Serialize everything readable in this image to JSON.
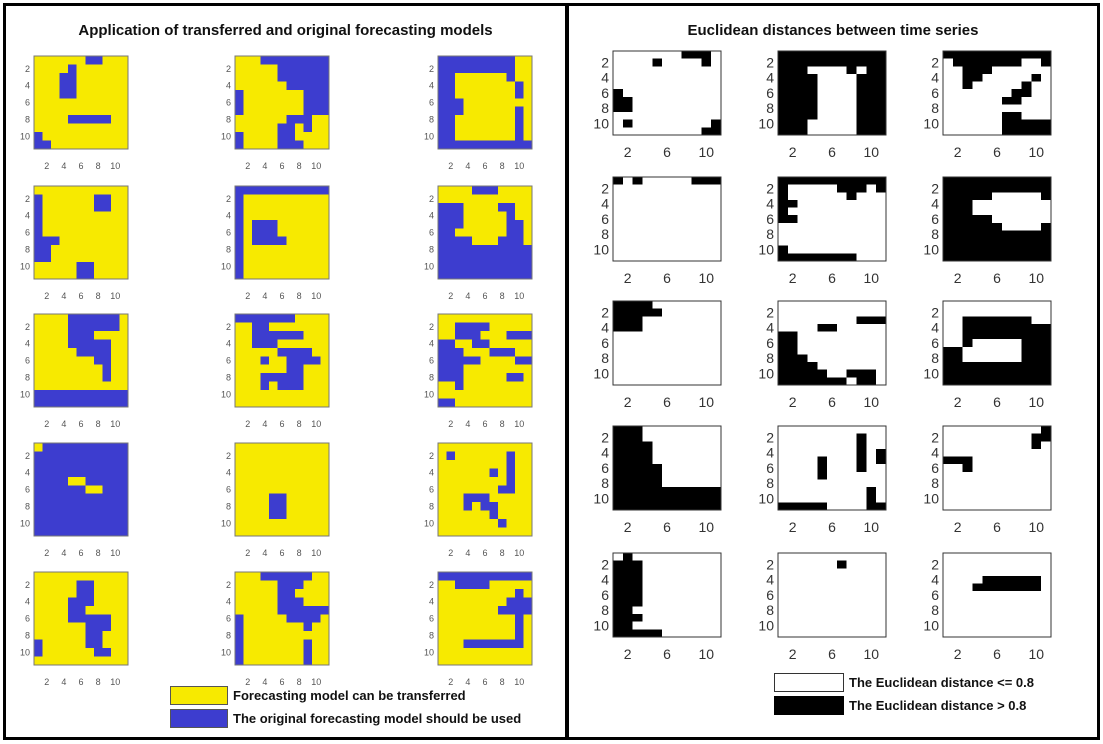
{
  "left_panel": {
    "title": "Application of transferred and original forecasting models",
    "legend": [
      {
        "label": "Forecasting model can be transferred",
        "value": 1,
        "color": "#f7ea00"
      },
      {
        "label": "The original forecasting model should be used",
        "value": 0,
        "color": "#3d3dcf"
      }
    ]
  },
  "right_panel": {
    "title": "Euclidean distances between time series",
    "legend": [
      {
        "label": "The Euclidean distance <= 0.8",
        "value": 1,
        "color": "#ffffff"
      },
      {
        "label": "The Euclidean distance > 0.8",
        "value": 0,
        "color": "#000000"
      }
    ]
  },
  "chart_data": [
    {
      "type": "heatmap",
      "panel": "left",
      "title": "Application of transferred and original forecasting models",
      "rows": 5,
      "cols": 3,
      "grid_size": 11,
      "x_ticks": [
        2,
        4,
        6,
        8,
        10
      ],
      "y_ticks": [
        2,
        4,
        6,
        8,
        10
      ],
      "colors": {
        "0": "#3d3dcf",
        "1": "#f7ea00"
      },
      "matrices": [
        [
          "11111100111",
          "11110111111",
          "11100111111",
          "11100111111",
          "11100111111",
          "11111111111",
          "11111111111",
          "11110000011",
          "11111111111",
          "01111111111",
          "00111111111"
        ],
        [
          "11100000000",
          "11111000000",
          "11111000000",
          "11111100000",
          "01111111000",
          "01111111000",
          "01111111000",
          "11111100011",
          "11111001011",
          "01111001111",
          "01111000111"
        ],
        [
          "00000000011",
          "00000000011",
          "00111111011",
          "00111111101",
          "00111111101",
          "00011111111",
          "00011111101",
          "00111111101",
          "00111111101",
          "00111111101",
          "00000000000"
        ],
        [
          "11111111111",
          "01111110011",
          "01111110011",
          "01111111111",
          "01111111111",
          "01111111111",
          "00011111111",
          "00111111111",
          "00111111111",
          "11111001111",
          "11111001111"
        ],
        [
          "00000000000",
          "01111111111",
          "01111111111",
          "01111111111",
          "01000111111",
          "01000111111",
          "01000011111",
          "01111111111",
          "01111111111",
          "01111111111",
          "01111111111"
        ],
        [
          "11110001111",
          "11111111111",
          "00011110011",
          "00011111011",
          "00011111001",
          "00111111001",
          "00001110001",
          "00000000000",
          "00000000000",
          "00000000000",
          "00000000000"
        ],
        [
          "11110000001",
          "11110000001",
          "11110001111",
          "11110000011",
          "11111000011",
          "11111110011",
          "11111111011",
          "11111111011",
          "11111111111",
          "00000000000",
          "00000000000"
        ],
        [
          "00000001111",
          "11001111111",
          "11000000111",
          "11000111111",
          "11111000011",
          "11101100001",
          "11111100111",
          "11100000111",
          "11101000111",
          "11111111111",
          "11111111111"
        ],
        [
          "11111111111",
          "11000011111",
          "11000111000",
          "00110011111",
          "00011100011",
          "00000111100",
          "00011111111",
          "00011111001",
          "11011111111",
          "11111111111",
          "00111111111"
        ],
        [
          "10000000000",
          "00000000000",
          "00000000000",
          "00000000000",
          "00001100000",
          "00000011000",
          "00000000000",
          "00000000000",
          "00000000000",
          "00000000000",
          "00000000000"
        ],
        [
          "11111111111",
          "11111111111",
          "11111111111",
          "11111111111",
          "11111111111",
          "11111111111",
          "11110011111",
          "11110011111",
          "11110011111",
          "11111111111",
          "11111111111"
        ],
        [
          "11111111111",
          "10111111011",
          "11111111011",
          "11111101011",
          "11111111011",
          "11111110011",
          "11100011111",
          "11101001111",
          "11111101111",
          "11111110111",
          "11111111111"
        ],
        [
          "11111111111",
          "11111001111",
          "11111001111",
          "11110001111",
          "11110011111",
          "11110000011",
          "11111100011",
          "11111100111",
          "01111100111",
          "01111110011",
          "11111111111"
        ],
        [
          "11100000011",
          "11111000111",
          "11111001111",
          "11111000111",
          "11111000000",
          "01111100001",
          "01111111011",
          "01111111111",
          "01111111011",
          "01111111011",
          "01111111011"
        ],
        [
          "00000000000",
          "11000011111",
          "11111111101",
          "11111111000",
          "11111110000",
          "11111111101",
          "11111111101",
          "11111111101",
          "11100000001",
          "11111111111",
          "11111111111"
        ]
      ]
    },
    {
      "type": "heatmap",
      "panel": "right",
      "title": "Euclidean distances between time series",
      "rows": 5,
      "cols": 3,
      "grid_size": 11,
      "x_ticks": [
        2,
        6,
        10
      ],
      "y_ticks": [
        2,
        4,
        6,
        8,
        10
      ],
      "colors": {
        "0": "#000000",
        "1": "#ffffff"
      },
      "matrices": [
        [
          "11111110001",
          "11110111101",
          "11111111111",
          "11111111111",
          "11111111111",
          "01111111111",
          "00111111111",
          "00111111111",
          "11111111111",
          "10111111110",
          "11111111100"
        ],
        [
          "00000000000",
          "00000000000",
          "00011110100",
          "00001111000",
          "00001111000",
          "00001111000",
          "00001111000",
          "00001111000",
          "00001111000",
          "00011111000",
          "00011111000"
        ],
        [
          "00000000000",
          "10000000110",
          "11000111111",
          "11001111101",
          "11011111011",
          "11111110011",
          "11111100111",
          "11111111111",
          "11111100111",
          "11111100000",
          "11111100000"
        ],
        [
          "01011111000",
          "11111111111",
          "11111111111",
          "11111111111",
          "11111111111",
          "11111111111",
          "11111111111",
          "11111111111",
          "11111111111",
          "11111111111",
          "11111111111"
        ],
        [
          "00000000000",
          "01111100010",
          "01111110111",
          "00111111111",
          "01111111111",
          "00111111111",
          "11111111111",
          "11111111111",
          "11111111111",
          "01111111111",
          "00000000111"
        ],
        [
          "00000000000",
          "00000000000",
          "00000111110",
          "00011111111",
          "00011111111",
          "00000111111",
          "00000011110",
          "00000000000",
          "00000000000",
          "00000000000",
          "00000000000"
        ],
        [
          "00001111111",
          "00000111111",
          "00011111111",
          "00011111111",
          "11111111111",
          "11111111111",
          "11111111111",
          "11111111111",
          "11111111111",
          "11111111111",
          "11111111111"
        ],
        [
          "11111111111",
          "11111111111",
          "11111111000",
          "11110011111",
          "00111111111",
          "00111111111",
          "00111111111",
          "00011111111",
          "00001111111",
          "00000110001",
          "00000001001"
        ],
        [
          "11111111111",
          "11111111111",
          "11000000011",
          "11000000000",
          "11000000000",
          "11011111000",
          "00111111000",
          "00111111000",
          "00000000000",
          "00000000000",
          "00000000000"
        ],
        [
          "00011111111",
          "00011111111",
          "00001111111",
          "00001111111",
          "00001111111",
          "00000111111",
          "00000111111",
          "00000111111",
          "00000000000",
          "00000000000",
          "00000000000"
        ],
        [
          "11111111111",
          "11111111011",
          "11111111011",
          "11111111010",
          "11110111010",
          "11110111011",
          "11110111111",
          "11111111111",
          "11111111101",
          "11111111101",
          "00000111100"
        ],
        [
          "11111111110",
          "11111111100",
          "11111111101",
          "11111111111",
          "00011111111",
          "11011111111",
          "11111111111",
          "11111111111",
          "11111111111",
          "11111111111",
          "11111111111"
        ],
        [
          "10111111111",
          "00011111111",
          "00011111111",
          "00011111111",
          "00011111111",
          "00011111111",
          "00011111111",
          "00111111111",
          "00011111111",
          "00111111111",
          "00000111111"
        ],
        [
          "11111111111",
          "11111101111",
          "11111111111",
          "11111111111",
          "11111111111",
          "11111111111",
          "11111111111",
          "11111111111",
          "11111111111",
          "11111111111",
          "11111111111"
        ],
        [
          "11111111111",
          "11111111111",
          "11111111111",
          "11110000001",
          "11100000001",
          "11111111111",
          "11111111111",
          "11111111111",
          "11111111111",
          "11111111111",
          "11111111111"
        ]
      ]
    }
  ]
}
